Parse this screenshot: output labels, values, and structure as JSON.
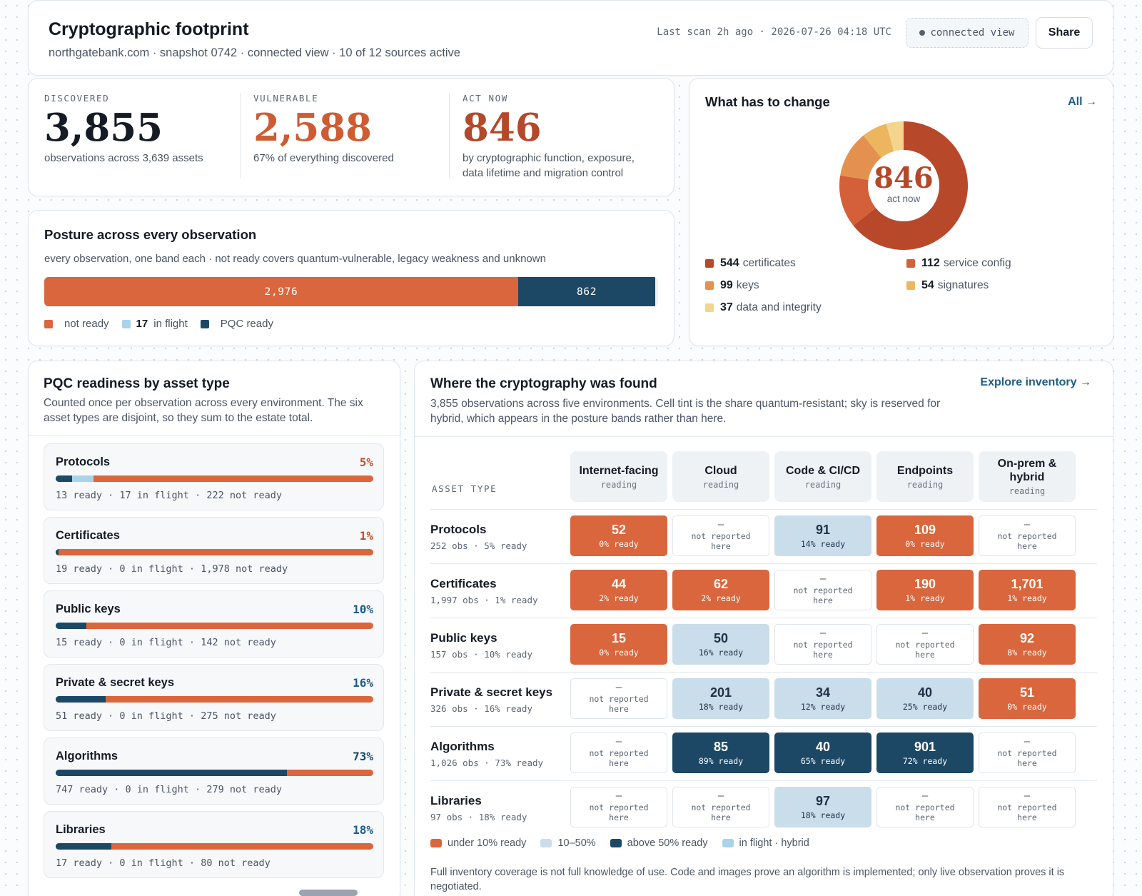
{
  "header": {
    "title": "Cryptographic footprint",
    "subtitle": "northgatebank.com · snapshot 0742 · connected view · 10 of 12 sources active",
    "last_scan": "Last scan 2h ago · 2026-07-26 04:18 UTC",
    "connected_chip": "connected view",
    "share_label": "Share"
  },
  "stats": [
    {
      "label": "DISCOVERED",
      "value": "3,855",
      "desc": "observations across 3,639 assets",
      "color": "#151b25"
    },
    {
      "label": "VULNERABLE",
      "value": "2,588",
      "desc": "67% of everything discovered",
      "color": "#cf5b33"
    },
    {
      "label": "ACT NOW",
      "value": "846",
      "desc": "by cryptographic function, exposure, data lifetime and migration control",
      "color": "#b3482a"
    }
  ],
  "posture": {
    "title": "Posture across every observation",
    "subtitle": "every observation, one band each · not ready covers quantum-vulnerable, legacy weakness and unknown",
    "total": 3855,
    "segments": [
      {
        "key": "not_ready",
        "value": 2976,
        "label": "2,976",
        "color": "#d9663c"
      },
      {
        "key": "pqc_ready",
        "value": 862,
        "label": "862",
        "color": "#1c4866"
      }
    ],
    "legend": [
      {
        "text": "not ready",
        "count": "",
        "color": "#d9663c"
      },
      {
        "text": "in flight",
        "count": "17",
        "color": "#a9d3ea"
      },
      {
        "text": "PQC ready",
        "count": "",
        "color": "#1c4866"
      }
    ]
  },
  "change": {
    "title": "What has to change",
    "all_link": "All →",
    "center_value": "846",
    "center_label": "act now",
    "slices": [
      {
        "label": "certificates",
        "value": 544,
        "color": "#b8482a"
      },
      {
        "label": "service config",
        "value": 112,
        "color": "#d4603a"
      },
      {
        "label": "keys",
        "value": 99,
        "color": "#e4914f"
      },
      {
        "label": "signatures",
        "value": 54,
        "color": "#ebb65e"
      },
      {
        "label": "data and integrity",
        "value": 37,
        "color": "#f3d58e"
      }
    ]
  },
  "readiness": {
    "title": "PQC readiness by asset type",
    "subtitle": "Counted once per observation across every environment. The six asset types are disjoint, so they sum to the estate total.",
    "rows": [
      {
        "name": "Protocols",
        "pct": "5%",
        "ready": 13,
        "flight": 17,
        "not_ready": 222,
        "counts": "13 ready · 17 in flight · 222 not ready",
        "pct_color": "#c0502e"
      },
      {
        "name": "Certificates",
        "pct": "1%",
        "ready": 19,
        "flight": 0,
        "not_ready": 1978,
        "counts": "19 ready · 0 in flight · 1,978 not ready",
        "pct_color": "#c0502e"
      },
      {
        "name": "Public keys",
        "pct": "10%",
        "ready": 15,
        "flight": 0,
        "not_ready": 142,
        "counts": "15 ready · 0 in flight · 142 not ready",
        "pct_color": "#1f5d86"
      },
      {
        "name": "Private & secret keys",
        "pct": "16%",
        "ready": 51,
        "flight": 0,
        "not_ready": 275,
        "counts": "51 ready · 0 in flight · 275 not ready",
        "pct_color": "#1f5d86"
      },
      {
        "name": "Algorithms",
        "pct": "73%",
        "ready": 747,
        "flight": 0,
        "not_ready": 279,
        "counts": "747 ready · 0 in flight · 279 not ready",
        "pct_color": "#1c4866"
      },
      {
        "name": "Libraries",
        "pct": "18%",
        "ready": 17,
        "flight": 0,
        "not_ready": 80,
        "counts": "17 ready · 0 in flight · 80 not ready",
        "pct_color": "#1f5d86"
      }
    ]
  },
  "matrix": {
    "title": "Where the cryptography was found",
    "explore_link": "Explore inventory →",
    "subtitle": "3,855 observations across five environments. Cell tint is the share quantum-resistant; sky is reserved for hybrid, which appears in the posture bands rather than here.",
    "asset_type_label": "ASSET TYPE",
    "columns": [
      {
        "title": "Internet-facing",
        "sub": "reading"
      },
      {
        "title": "Cloud",
        "sub": "reading"
      },
      {
        "title": "Code & CI/CD",
        "sub": "reading"
      },
      {
        "title": "Endpoints",
        "sub": "reading"
      },
      {
        "title": "On-prem & hybrid",
        "sub": "reading"
      }
    ],
    "empty_dash": "—",
    "empty_text": "not reported here",
    "rows": [
      {
        "name": "Protocols",
        "obs": "252 obs · 5% ready",
        "cells": [
          {
            "v": "52",
            "p": "0% ready",
            "t": "low"
          },
          null,
          {
            "v": "91",
            "p": "14% ready",
            "t": "mid"
          },
          {
            "v": "109",
            "p": "0% ready",
            "t": "low"
          },
          null
        ]
      },
      {
        "name": "Certificates",
        "obs": "1,997 obs · 1% ready",
        "cells": [
          {
            "v": "44",
            "p": "2% ready",
            "t": "low"
          },
          {
            "v": "62",
            "p": "2% ready",
            "t": "low"
          },
          null,
          {
            "v": "190",
            "p": "1% ready",
            "t": "low"
          },
          {
            "v": "1,701",
            "p": "1% ready",
            "t": "low"
          }
        ]
      },
      {
        "name": "Public keys",
        "obs": "157 obs · 10% ready",
        "cells": [
          {
            "v": "15",
            "p": "0% ready",
            "t": "low"
          },
          {
            "v": "50",
            "p": "16% ready",
            "t": "mid"
          },
          null,
          null,
          {
            "v": "92",
            "p": "8% ready",
            "t": "low"
          }
        ]
      },
      {
        "name": "Private & secret keys",
        "obs": "326 obs · 16% ready",
        "cells": [
          null,
          {
            "v": "201",
            "p": "18% ready",
            "t": "mid"
          },
          {
            "v": "34",
            "p": "12% ready",
            "t": "mid"
          },
          {
            "v": "40",
            "p": "25% ready",
            "t": "mid"
          },
          {
            "v": "51",
            "p": "0% ready",
            "t": "low"
          }
        ]
      },
      {
        "name": "Algorithms",
        "obs": "1,026 obs · 73% ready",
        "cells": [
          null,
          {
            "v": "85",
            "p": "89% ready",
            "t": "high"
          },
          {
            "v": "40",
            "p": "65% ready",
            "t": "high"
          },
          {
            "v": "901",
            "p": "72% ready",
            "t": "high"
          },
          null
        ]
      },
      {
        "name": "Libraries",
        "obs": "97 obs · 18% ready",
        "cells": [
          null,
          null,
          {
            "v": "97",
            "p": "18% ready",
            "t": "mid"
          },
          null,
          null
        ]
      }
    ],
    "legend": [
      {
        "text": "under 10% ready",
        "color": "#d9663c"
      },
      {
        "text": "10–50%",
        "color": "#c9ddea"
      },
      {
        "text": "above 50% ready",
        "color": "#1c4866"
      },
      {
        "text": "in flight · hybrid",
        "color": "#a9d3ea"
      }
    ],
    "note": "Full inventory coverage is not full knowledge of use. Code and images prove an algorithm is implemented; only live observation proves it is negotiated."
  },
  "colors": {
    "not_ready": "#d9663c",
    "in_flight": "#a9d3ea",
    "pqc_ready": "#1c4866",
    "link": "#1f5d86"
  }
}
